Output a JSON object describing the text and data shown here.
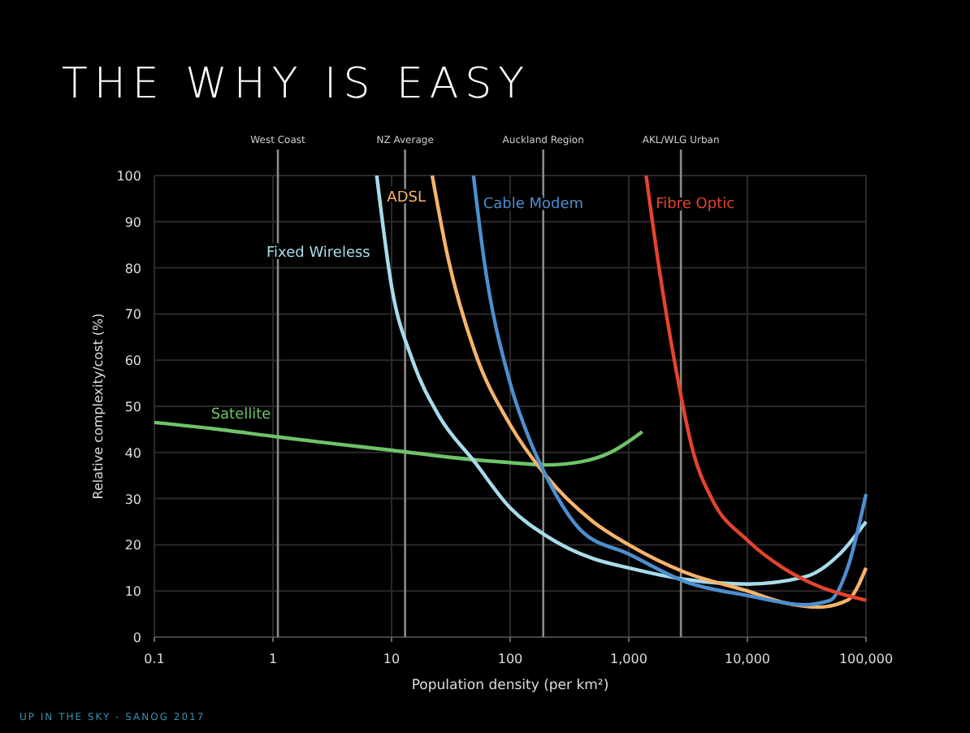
{
  "chart_data": {
    "type": "line",
    "title": "THE WHY IS EASY",
    "xlabel": "Population density (per km²)",
    "ylabel": "Relative complexity/cost (%)",
    "log": "x",
    "xlim": [
      0.1,
      100000
    ],
    "xticks": [
      0.1,
      1,
      10,
      100,
      {
        "value": 1000,
        "label": "1,000"
      },
      {
        "value": 10000,
        "label": "10,000"
      },
      {
        "value": 100000,
        "label": "100,000"
      }
    ],
    "ylim": [
      0,
      100
    ],
    "yticks": [
      0,
      10,
      20,
      30,
      40,
      50,
      60,
      70,
      80,
      90,
      100
    ],
    "grid": true,
    "series": [
      {
        "name": "Satellite",
        "color": "#6fc36a",
        "x": [
          0.1,
          0.3,
          1,
          3,
          10,
          30,
          100,
          200,
          400,
          700,
          1300
        ],
        "values": [
          46.5,
          45.2,
          43.5,
          42,
          40.5,
          39,
          37.8,
          37.3,
          38,
          40,
          44.5
        ]
      },
      {
        "name": "Fixed Wireless",
        "color": "#a8dcea",
        "x": [
          7.5,
          10,
          15,
          25,
          50,
          100,
          200,
          500,
          1000,
          3000,
          10000,
          30000,
          60000,
          100000
        ],
        "values": [
          100,
          76,
          60,
          48,
          38,
          28,
          22,
          17,
          15,
          12.5,
          11.5,
          13,
          18,
          25
        ]
      },
      {
        "name": "ADSL",
        "color": "#f6b36b",
        "x": [
          22,
          30,
          50,
          100,
          200,
          500,
          1000,
          3000,
          10000,
          20000,
          40000,
          70000,
          100000
        ],
        "values": [
          100,
          82,
          62,
          46,
          35,
          25,
          20,
          14,
          10,
          7.5,
          6.5,
          8,
          15
        ]
      },
      {
        "name": "Cable Modem",
        "color": "#4d8fd0",
        "x": [
          49,
          60,
          100,
          150,
          200,
          400,
          1000,
          3000,
          10000,
          30000,
          50000,
          70000,
          100000
        ],
        "values": [
          100,
          82,
          55,
          42,
          35,
          23,
          18,
          12,
          9,
          7,
          8,
          15,
          31
        ]
      },
      {
        "name": "Fibre Optic",
        "color": "#e5432e",
        "x": [
          1400,
          1800,
          2500,
          3500,
          5000,
          10000,
          20000,
          40000,
          100000
        ],
        "values": [
          100,
          80,
          58,
          40,
          30,
          21,
          15,
          11,
          8
        ]
      }
    ],
    "ref_lines": [
      {
        "axis": "x",
        "value": 1.1,
        "label": "West Coast",
        "color": "#8a8a8a"
      },
      {
        "axis": "x",
        "value": 13,
        "label": "NZ Average",
        "color": "#8a8a8a"
      },
      {
        "axis": "x",
        "value": 190,
        "label": "Auckland Region",
        "color": "#8a8a8a"
      },
      {
        "axis": "x",
        "value": 2750,
        "label": "AKL/WLG Urban",
        "color": "#8a8a8a"
      }
    ],
    "annotations": [
      "UP IN THE SKY - SANOG 2017"
    ]
  }
}
